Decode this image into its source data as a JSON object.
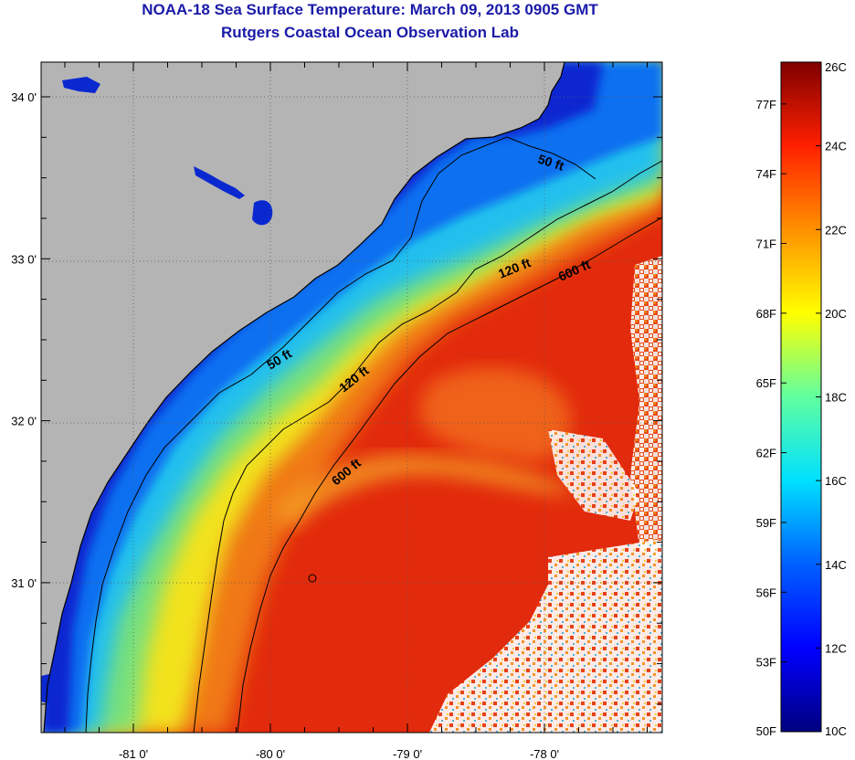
{
  "header": {
    "title_line_1": "NOAA-18 Sea Surface Temperature:  March 09, 2013 0905 GMT",
    "title_line_2": "Rutgers Coastal Ocean Observation Lab"
  },
  "map": {
    "lon_range": [
      -81.7,
      -77.2
    ],
    "lat_range": [
      30.2,
      34.2
    ],
    "lon_ticks": [
      {
        "value": -81,
        "label": "-81 0'"
      },
      {
        "value": -80,
        "label": "-80 0'"
      },
      {
        "value": -79,
        "label": "-79 0'"
      },
      {
        "value": -78,
        "label": "-78 0'"
      }
    ],
    "lat_ticks": [
      {
        "value": 34,
        "label": "34 0'"
      },
      {
        "value": 33,
        "label": "33 0'"
      },
      {
        "value": 32,
        "label": "32 0'"
      },
      {
        "value": 31,
        "label": "31 0'"
      }
    ],
    "contour_labels": {
      "north_50": "50 ft",
      "north_120": "120 ft",
      "north_600": "600 ft",
      "mid_50": "50 ft",
      "mid_120": "120 ft",
      "south_600": "600 ft"
    },
    "colors": {
      "land": "#b4b4b4",
      "near_shore": "#0f2fd8",
      "shelf_mid": "#1ab8f0",
      "shelf_outer": "#f0e020",
      "gulf_stream": "#e83010",
      "cloud": "#ffffff"
    }
  },
  "colorbar": {
    "temp_range_c": [
      10,
      26
    ],
    "f_labels": [
      "77F",
      "74F",
      "71F",
      "68F",
      "65F",
      "62F",
      "59F",
      "56F",
      "53F",
      "50F"
    ],
    "c_labels": [
      "26C",
      "24C",
      "22C",
      "20C",
      "18C",
      "16C",
      "14C",
      "12C",
      "10C"
    ]
  }
}
